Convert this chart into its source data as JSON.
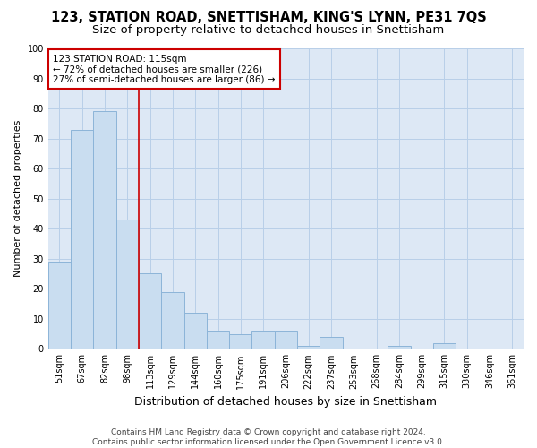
{
  "title": "123, STATION ROAD, SNETTISHAM, KING'S LYNN, PE31 7QS",
  "subtitle": "Size of property relative to detached houses in Snettisham",
  "xlabel": "Distribution of detached houses by size in Snettisham",
  "ylabel": "Number of detached properties",
  "categories": [
    "51sqm",
    "67sqm",
    "82sqm",
    "98sqm",
    "113sqm",
    "129sqm",
    "144sqm",
    "160sqm",
    "175sqm",
    "191sqm",
    "206sqm",
    "222sqm",
    "237sqm",
    "253sqm",
    "268sqm",
    "284sqm",
    "299sqm",
    "315sqm",
    "330sqm",
    "346sqm",
    "361sqm"
  ],
  "values": [
    29,
    73,
    79,
    43,
    25,
    19,
    12,
    6,
    5,
    6,
    6,
    1,
    4,
    0,
    0,
    1,
    0,
    2,
    0,
    0,
    0
  ],
  "bar_color": "#c9ddf0",
  "bar_edge_color": "#8cb4d8",
  "bar_linewidth": 0.7,
  "red_line_index": 4,
  "annotation_text": "123 STATION ROAD: 115sqm\n← 72% of detached houses are smaller (226)\n27% of semi-detached houses are larger (86) →",
  "annotation_box_facecolor": "#ffffff",
  "annotation_box_edgecolor": "#cc0000",
  "red_line_color": "#cc0000",
  "ylim": [
    0,
    100
  ],
  "yticks": [
    0,
    10,
    20,
    30,
    40,
    50,
    60,
    70,
    80,
    90,
    100
  ],
  "grid_color": "#b8cfe8",
  "plot_bg_color": "#dde8f5",
  "fig_bg_color": "#ffffff",
  "title_fontsize": 10.5,
  "subtitle_fontsize": 9.5,
  "xlabel_fontsize": 9,
  "ylabel_fontsize": 8,
  "tick_fontsize": 7,
  "annotation_fontsize": 7.5,
  "footer_fontsize": 6.5,
  "footer_line1": "Contains HM Land Registry data © Crown copyright and database right 2024.",
  "footer_line2": "Contains public sector information licensed under the Open Government Licence v3.0."
}
